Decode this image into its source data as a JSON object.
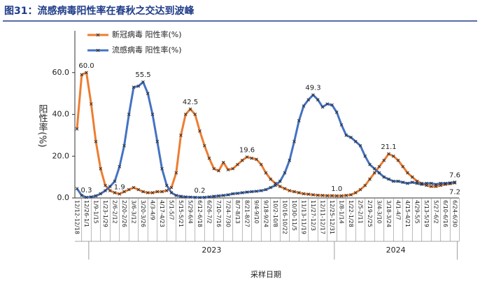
{
  "chart_data": {
    "type": "line",
    "title": "图31：流感病毒阳性率在春秋之交达到波峰",
    "y_label": "阳性率(%)",
    "x_label": "采样日期",
    "categories": [
      "12/12-12/18",
      null,
      "12/26-1/1",
      null,
      "1/9-1/15",
      null,
      "1/23-1/29",
      null,
      "2/6-2/12",
      null,
      "2/20-2/26",
      null,
      "3/6-3/12",
      null,
      "3/20-3/26",
      null,
      "4/3-4/9",
      null,
      "4/17-4/23",
      null,
      "5/1-5/7",
      null,
      "5/15-5/21",
      null,
      "5/29-6/4",
      null,
      "6/12-6/18",
      null,
      "6/26-7/2",
      null,
      "7/10-7/16",
      null,
      "7/24-7/30",
      null,
      "8/7-8/13",
      null,
      "8/21-8/27",
      null,
      "9/4-9/10",
      null,
      "9/18-9/24",
      null,
      "10/2-10/8",
      null,
      "10/16-10/22",
      null,
      "10/30-11/5",
      null,
      "11/13-11/19",
      null,
      "11/27-12/3",
      null,
      "12/11-12/17",
      null,
      "12/25-12/31",
      null,
      "1/8-1/14",
      null,
      "1/22-1/28",
      null,
      "2/5-2/11",
      null,
      "2/19-2/25",
      null,
      "3/4-3/10",
      null,
      "3/18-3/24",
      null,
      "4/1-4/7",
      null,
      "4/15-4/21",
      null,
      "4/29-5/5",
      null,
      "5/13-5/19",
      null,
      "5/27-6/2",
      null,
      "6/10-6/16",
      null,
      "6/24-6/30"
    ],
    "x_groups": [
      {
        "label": "2023",
        "from": 3,
        "to": 54
      },
      {
        "label": "2024",
        "from": 55,
        "to": 80
      }
    ],
    "series": [
      {
        "name": "新冠病毒 阳性率(%)",
        "color": "#ED7D31",
        "values": [
          33,
          59,
          60,
          45,
          27,
          14,
          6,
          3.5,
          2.5,
          1.9,
          3,
          4,
          5,
          4,
          3,
          2.5,
          2.5,
          3,
          3,
          3.5,
          5,
          12,
          30,
          40,
          42.5,
          40,
          32,
          25,
          19,
          14,
          13,
          17,
          13.5,
          14,
          16,
          18,
          19.6,
          19,
          18.5,
          16,
          12,
          9,
          7,
          5.5,
          4.5,
          3.5,
          3,
          2.5,
          2,
          1.8,
          1.5,
          1.3,
          1.2,
          1.1,
          1.1,
          1.0,
          1.0,
          1.2,
          1.5,
          2.5,
          4,
          6,
          9,
          12,
          15,
          18,
          21.1,
          20,
          18,
          15,
          12,
          10,
          8,
          7,
          6,
          5.5,
          5.5,
          6,
          6.5,
          6.8,
          7.2
        ],
        "value_labels": [
          null,
          null,
          "60.0",
          null,
          null,
          null,
          null,
          null,
          null,
          "1.9",
          null,
          null,
          null,
          null,
          null,
          null,
          null,
          null,
          null,
          null,
          null,
          null,
          null,
          null,
          "42.5",
          null,
          null,
          null,
          null,
          null,
          null,
          null,
          null,
          null,
          null,
          null,
          "19.6",
          null,
          null,
          null,
          null,
          null,
          null,
          null,
          null,
          null,
          null,
          null,
          null,
          null,
          null,
          null,
          null,
          null,
          null,
          "1.0",
          null,
          null,
          null,
          null,
          null,
          null,
          null,
          null,
          null,
          null,
          "21.1",
          null,
          null,
          null,
          null,
          null,
          null,
          null,
          null,
          null,
          null,
          null,
          null,
          null,
          "7.2"
        ]
      },
      {
        "name": "流感病毒 阳性率(%)",
        "color": "#4472C4",
        "values": [
          4.5,
          1.2,
          0.3,
          0.5,
          1,
          2,
          3.5,
          5.5,
          8,
          15,
          25,
          40,
          53,
          53.5,
          55.5,
          50,
          40,
          27,
          14,
          6,
          2.5,
          1.2,
          0.8,
          0.5,
          0.4,
          0.3,
          0.2,
          0.3,
          0.5,
          0.8,
          1,
          1.2,
          1.5,
          2,
          2.2,
          2.5,
          2.8,
          3,
          3.2,
          3.5,
          4,
          5,
          6,
          8,
          12,
          18,
          27,
          37,
          44,
          47,
          49.3,
          47,
          43.5,
          45,
          44.5,
          41,
          35,
          30,
          29,
          27,
          25,
          20,
          16,
          14,
          12,
          10,
          9,
          8,
          8,
          7.5,
          7,
          7.5,
          7,
          6.5,
          7,
          7,
          6.5,
          7,
          7,
          7.2,
          7.6
        ],
        "value_labels": [
          null,
          null,
          "0.3",
          null,
          null,
          null,
          null,
          null,
          null,
          null,
          null,
          null,
          null,
          null,
          "55.5",
          null,
          null,
          null,
          null,
          null,
          null,
          null,
          null,
          null,
          null,
          null,
          "0.2",
          null,
          null,
          null,
          null,
          null,
          null,
          null,
          null,
          null,
          null,
          null,
          null,
          null,
          null,
          null,
          null,
          null,
          null,
          null,
          null,
          null,
          null,
          null,
          "49.3",
          null,
          null,
          null,
          null,
          null,
          null,
          null,
          null,
          null,
          null,
          null,
          null,
          null,
          null,
          null,
          null,
          null,
          null,
          null,
          null,
          null,
          null,
          null,
          null,
          null,
          null,
          null,
          null,
          null,
          "7.6"
        ]
      }
    ],
    "ylim": [
      0,
      80
    ],
    "yticks": [
      {
        "value": 0,
        "label": "0.0"
      },
      {
        "value": 20,
        "label": "20.0"
      },
      {
        "value": 40,
        "label": "40.0"
      },
      {
        "value": 60,
        "label": "60.0"
      }
    ],
    "legend": "upper left",
    "marker_color": "#333333"
  }
}
